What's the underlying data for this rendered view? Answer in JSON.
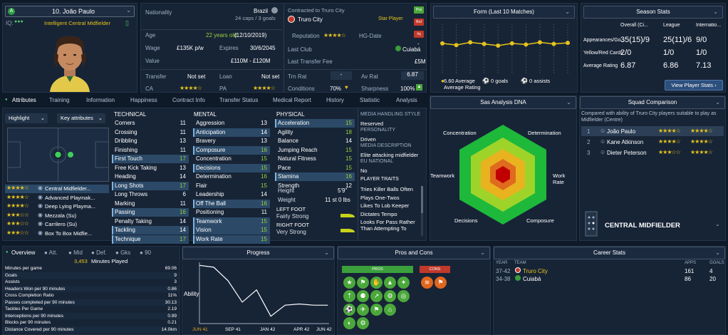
{
  "player": {
    "number_name": "10. João Paulo",
    "role": "Intelligent Central Midfielder",
    "iq_label": "IQ:"
  },
  "info": {
    "nationality_label": "Nationality",
    "nationality": "Brazil",
    "caps": "24 caps / 3 goals",
    "age_label": "Age",
    "age": "22 years old",
    "dob": "(12/10/2019)",
    "wage_label": "Wage",
    "wage": "£135K p/w",
    "expires_label": "Expires",
    "expires": "30/6/2045",
    "value_label": "Value",
    "value": "£110M - £120M",
    "transfer_label": "Transfer",
    "transfer": "Not set",
    "loan_label": "Loan",
    "loan": "Not set",
    "ca_label": "CA",
    "pa_label": "PA",
    "ca_stars": "★★★★☆",
    "pa_stars": "★★★★☆",
    "contract_label": "Contracted to Truro City",
    "club": "Truro City",
    "status": "Star Player",
    "reputation_label": "Reputation",
    "reputation_stars": "★★★★☆",
    "hg_label": "HG-Date",
    "hg": "-",
    "last_club_label": "Last Club",
    "last_club": "Cuiabá",
    "last_fee_label": "Last Transfer Fee",
    "last_fee": "£5M",
    "trn_label": "Trn Rat",
    "trn": "-",
    "avrat_label": "Av Rat",
    "avrat": "6.87",
    "conditions_label": "Conditions",
    "conditions": "70%",
    "sharpness_label": "Sharpness",
    "sharpness": "100%",
    "badges": [
      "Pos",
      "Brd",
      "Inj"
    ]
  },
  "form": {
    "title": "Form (Last 10 Matches)",
    "avg_value": "6.60",
    "avg_label": "Average Rating",
    "goals": "0 goals",
    "assists": "0 assists",
    "values": [
      0.58,
      0.55,
      0.6,
      0.57,
      0.54,
      0.58,
      0.56,
      0.6,
      0.57,
      0.59
    ]
  },
  "season": {
    "title": "Season Stats",
    "cols": [
      "Overall (Ci...",
      "League",
      "Internatio..."
    ],
    "rows": [
      {
        "label": "Appearances/Go...",
        "v": [
          "35(15)/9",
          "25(11)/6",
          "9/0"
        ]
      },
      {
        "label": "Yellow/Red Cards",
        "v": [
          "2/0",
          "1/0",
          "1/0"
        ]
      },
      {
        "label": "Average Rating",
        "v": [
          "6.87",
          "6.86",
          "7.13"
        ]
      }
    ],
    "button": "View Player Stats"
  },
  "tabs": [
    "Attributes",
    "Training",
    "Information",
    "Happiness",
    "Contract Info",
    "Transfer Status",
    "Medical Report",
    "History",
    "Statistic",
    "Analysis"
  ],
  "highlight": {
    "label": "Highlight",
    "key": "Key attributes"
  },
  "roles": [
    {
      "name": "Central Midfielder...",
      "stars": "★★★★☆"
    },
    {
      "name": "Advanced Playmak...",
      "stars": "★★★★☆"
    },
    {
      "name": "Deep Lying Playma...",
      "stars": "★★★★☆"
    },
    {
      "name": "Mezzala (Su)",
      "stars": "★★★☆☆"
    },
    {
      "name": "Carrilero (Su)",
      "stars": "★★★☆☆"
    },
    {
      "name": "Box To Box Midfie...",
      "stars": "★★★☆☆"
    }
  ],
  "technical": {
    "title": "TECHNICAL",
    "items": [
      [
        "Corners",
        "11"
      ],
      [
        "Crossing",
        "11"
      ],
      [
        "Dribbling",
        "13"
      ],
      [
        "Finishing",
        "11"
      ],
      [
        "First Touch",
        "17"
      ],
      [
        "Free Kick Taking",
        "13"
      ],
      [
        "Heading",
        "14"
      ],
      [
        "Long Shots",
        "17"
      ],
      [
        "Long Throws",
        "6"
      ],
      [
        "Marking",
        "11"
      ],
      [
        "Passing",
        "16"
      ],
      [
        "Penalty Taking",
        "14"
      ],
      [
        "Tackling",
        "14"
      ],
      [
        "Technique",
        "17"
      ]
    ]
  },
  "mental": {
    "title": "MENTAL",
    "items": [
      [
        "Aggression",
        "13"
      ],
      [
        "Anticipation",
        "14"
      ],
      [
        "Bravery",
        "13"
      ],
      [
        "Composure",
        "16"
      ],
      [
        "Concentration",
        "15"
      ],
      [
        "Decisions",
        "15"
      ],
      [
        "Determination",
        "16"
      ],
      [
        "Flair",
        "15"
      ],
      [
        "Leadership",
        "14"
      ],
      [
        "Off The Ball",
        "16"
      ],
      [
        "Positioning",
        "11"
      ],
      [
        "Teamwork",
        "15"
      ],
      [
        "Vision",
        "15"
      ],
      [
        "Work Rate",
        "15"
      ]
    ]
  },
  "physical": {
    "title": "PHYSICAL",
    "items": [
      [
        "Acceleration",
        "15"
      ],
      [
        "Agility",
        "18"
      ],
      [
        "Balance",
        "14"
      ],
      [
        "Jumping Reach",
        "15"
      ],
      [
        "Natural Fitness",
        "15"
      ],
      [
        "Pace",
        "15"
      ],
      [
        "Stamina",
        "16"
      ],
      [
        "Strength",
        "12"
      ]
    ],
    "height_label": "Height",
    "height": "5'9\"",
    "weight_label": "Weight",
    "weight": "11 st 0 lbs",
    "left_foot_label": "LEFT FOOT",
    "left_foot": "Fairly Strong",
    "right_foot_label": "RIGHT FOOT",
    "right_foot": "Very Strong"
  },
  "media": {
    "title": "MEDIA HANDLING STYLE",
    "style": "Reserved",
    "personality_label": "PERSONALITY",
    "personality": "Driven",
    "desc_label": "MEDIA DESCRIPTION",
    "desc": "Elite attacking midfielder",
    "eu_label": "EU NATIONAL",
    "eu": "No",
    "traits_label": "PLAYER TRAITS",
    "traits": [
      "Tries Killer Balls Often",
      "Plays One-Twos",
      "Likes To Lob Keeper",
      "Dictates Tempo",
      "Looks For Pass Rather Than Attempting To"
    ]
  },
  "dna": {
    "title": "Sas Analysis DNA",
    "labels": [
      "Concentration",
      "Determination",
      "Work Rate",
      "Composure",
      "Decisions",
      "Teamwork"
    ]
  },
  "squad": {
    "title": "Squad Comparison",
    "desc": "Compared with ability of Truro City players suitable to play as Midfielder (Centre)",
    "rows": [
      {
        "rank": "1",
        "name": "João Paulo",
        "a": "★★★★☆",
        "b": "★★★★☆"
      },
      {
        "rank": "2",
        "name": "Kane Atkinson",
        "a": "★★★★☆",
        "b": "★★★★☆"
      },
      {
        "rank": "3",
        "name": "Dieter Peterson",
        "a": "★★★☆☆",
        "b": "★★★★☆"
      }
    ],
    "position": "CENTRAL MIDFIELDER"
  },
  "overview": {
    "tabs": [
      "Overview",
      "Att.",
      "Mid",
      "Def.",
      "Gks",
      "90"
    ],
    "minutes": "3,453",
    "minutes_label": "Minutes Played",
    "rows": [
      [
        "Minutes per game",
        "69.06"
      ],
      [
        "Goals",
        "9"
      ],
      [
        "Assists",
        "3"
      ],
      [
        "Headers Won per 90 minutes",
        "0.86"
      ],
      [
        "Cross Completion Ratio",
        "11%"
      ],
      [
        "Passes completed per 90 minutes",
        "30.13"
      ],
      [
        "Tackles Per Game",
        "2.19"
      ],
      [
        "Interceptions per 90 minutes",
        "0.99"
      ],
      [
        "Blocks per 90 minutes",
        "0.21"
      ],
      [
        "Distance Covered per 90 minutes",
        "14.0km"
      ]
    ]
  },
  "progress": {
    "title": "Progress",
    "ylabel": "Ability",
    "xlabels": [
      "JUN 41",
      "SEP 41",
      "JAN 42",
      "APR 42",
      "JUN 42"
    ],
    "values": [
      0.95,
      0.92,
      0.7,
      0.35,
      0.55,
      0.12,
      0.3,
      0.32,
      0.3,
      0.3
    ]
  },
  "pros": {
    "title": "Pros and Cons",
    "pros": "PROS",
    "cons": "CONS"
  },
  "career": {
    "title": "Career Stats",
    "cols": [
      "YEAR",
      "TEAM",
      "APPS",
      "GOALS"
    ],
    "rows": [
      [
        "37-42",
        "Truro City",
        "161",
        "4"
      ],
      [
        "34-38",
        "Cuiabá",
        "86",
        "20"
      ]
    ]
  }
}
